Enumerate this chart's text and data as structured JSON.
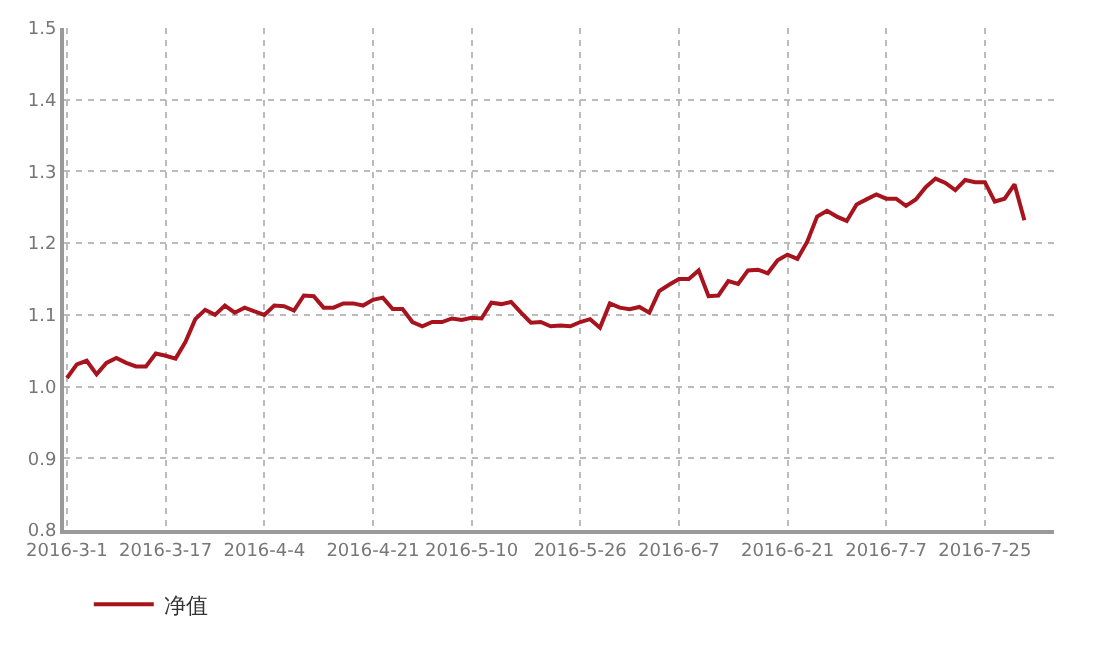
{
  "chart_data": {
    "type": "line",
    "categories": [
      "2016-3-1",
      null,
      null,
      null,
      null,
      null,
      null,
      null,
      null,
      null,
      "2016-3-17",
      null,
      null,
      null,
      null,
      null,
      null,
      null,
      null,
      null,
      "2016-4-4",
      null,
      null,
      null,
      null,
      null,
      null,
      null,
      null,
      null,
      null,
      "2016-4-21",
      null,
      null,
      null,
      null,
      null,
      null,
      null,
      null,
      null,
      "2016-5-10",
      null,
      null,
      null,
      null,
      null,
      null,
      null,
      null,
      null,
      null,
      "2016-5-26",
      null,
      null,
      null,
      null,
      null,
      null,
      null,
      null,
      null,
      "2016-6-7",
      null,
      null,
      null,
      null,
      null,
      null,
      null,
      null,
      null,
      null,
      "2016-6-21",
      null,
      null,
      null,
      null,
      null,
      null,
      null,
      null,
      null,
      "2016-7-7",
      null,
      null,
      null,
      null,
      null,
      null,
      null,
      null,
      null,
      "2016-7-25",
      null,
      null,
      null,
      null
    ],
    "series": [
      {
        "name": "净值",
        "color": "#a8141e",
        "values": [
          1.012,
          1.031,
          1.036,
          1.017,
          1.033,
          1.04,
          1.033,
          1.028,
          1.028,
          1.046,
          1.043,
          1.039,
          1.062,
          1.094,
          1.107,
          1.1,
          1.113,
          1.103,
          1.11,
          1.105,
          1.1,
          1.113,
          1.112,
          1.106,
          1.127,
          1.126,
          1.11,
          1.11,
          1.116,
          1.116,
          1.113,
          1.121,
          1.124,
          1.108,
          1.108,
          1.09,
          1.084,
          1.09,
          1.09,
          1.095,
          1.093,
          1.096,
          1.095,
          1.117,
          1.115,
          1.118,
          1.103,
          1.089,
          1.09,
          1.084,
          1.085,
          1.084,
          1.09,
          1.094,
          1.082,
          1.116,
          1.11,
          1.108,
          1.111,
          1.103,
          1.133,
          1.142,
          1.15,
          1.15,
          1.162,
          1.126,
          1.127,
          1.147,
          1.143,
          1.162,
          1.163,
          1.158,
          1.176,
          1.184,
          1.178,
          1.202,
          1.237,
          1.245,
          1.237,
          1.231,
          1.254,
          1.261,
          1.268,
          1.262,
          1.262,
          1.252,
          1.261,
          1.278,
          1.29,
          1.284,
          1.274,
          1.288,
          1.285,
          1.285,
          1.258,
          1.262,
          1.282,
          1.232
        ]
      }
    ],
    "ylim": [
      0.8,
      1.5
    ],
    "yticks": [
      0.8,
      0.9,
      {
        "value": 1,
        "label": "1.0"
      },
      1.1,
      1.2,
      1.3,
      1.4,
      1.5
    ],
    "grid": true,
    "legend": "bottom left",
    "marker": "none",
    "line_style": "solid"
  }
}
